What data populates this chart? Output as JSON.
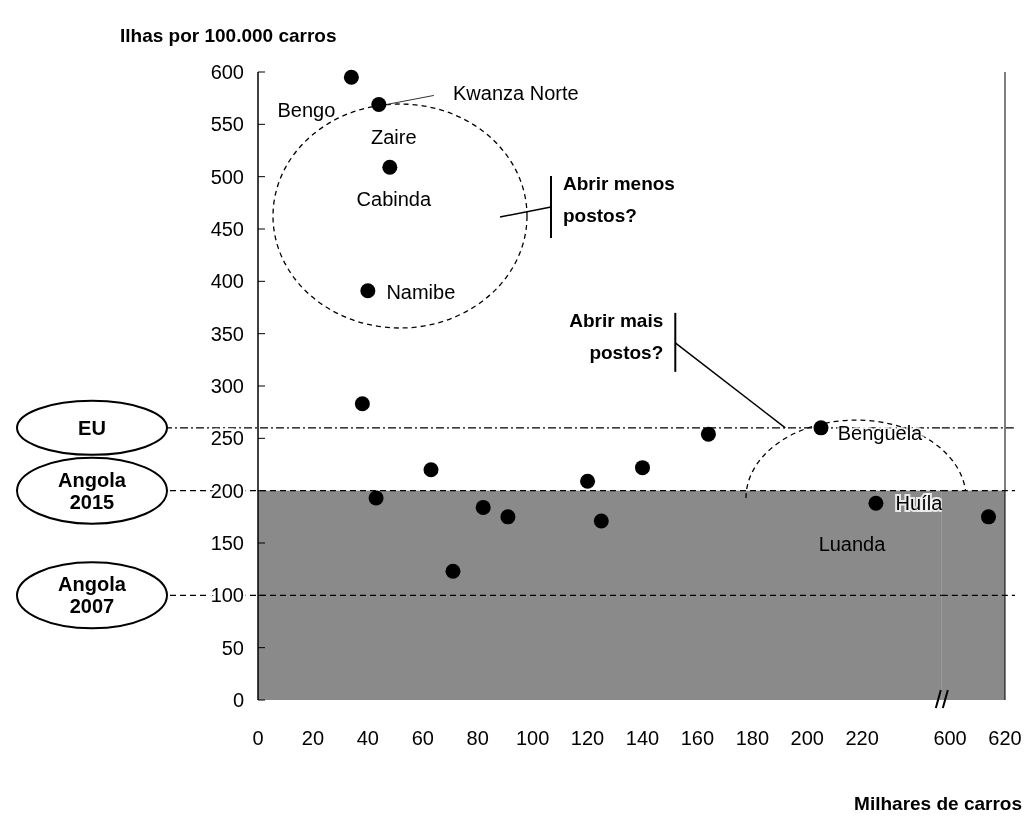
{
  "chart_data": [
    {
      "type": "scatter",
      "xlabel": "Milhares de carros",
      "ylabel": "Ilhas por 100.000 carros",
      "x": [
        34,
        44,
        48,
        40,
        38,
        43,
        63,
        71,
        82,
        91,
        120,
        125,
        140,
        164,
        205,
        225
      ],
      "series": [
        {
          "color": "#000000",
          "values": [
            595,
            569,
            509,
            391,
            283,
            193,
            220,
            123,
            184,
            175,
            209,
            171,
            222,
            254,
            260,
            188
          ]
        }
      ],
      "marker": "circle",
      "xlim": [
        0,
        249
      ],
      "xticks": [
        0,
        20,
        40,
        60,
        80,
        100,
        120,
        140,
        160,
        180,
        200,
        220
      ],
      "ylim": [
        0,
        600
      ],
      "yticks": [
        0,
        50,
        100,
        150,
        200,
        250,
        300,
        350,
        400,
        450,
        500,
        550,
        600
      ],
      "ref_lines": [
        {
          "axis": "y",
          "value": 260,
          "label": "EU"
        },
        {
          "axis": "y",
          "value": 200,
          "label": "Angola 2015",
          "line_style": "dashed"
        },
        {
          "axis": "y",
          "value": 100,
          "label": "Angola 2007",
          "line_style": "dashed"
        }
      ],
      "bands": [
        {
          "axis": "y",
          "from": 0,
          "to": 200,
          "color": "#8a8a8a"
        }
      ],
      "annotations": [
        {
          "text": "Bengo",
          "x": 34,
          "y": 595
        },
        {
          "text": "Kwanza Norte",
          "x": 44,
          "y": 569
        },
        {
          "text": "Zaire",
          "x": 48,
          "y": 509
        },
        {
          "text": "Cabinda",
          "x": 48,
          "y": 509
        },
        {
          "text": "Namibe",
          "x": 40,
          "y": 391
        },
        {
          "text": "Benguela",
          "x": 205,
          "y": 260
        },
        {
          "text": "Huíla",
          "x": 225,
          "y": 188
        },
        "Luanda",
        "Abrir menos postos?",
        {
          "text": "Abrir mais postos?",
          "x": 192,
          "y": 260
        }
      ]
    },
    {
      "type": "scatter",
      "x": [
        614
      ],
      "series": [
        {
          "color": "#000000",
          "values": [
            175
          ]
        }
      ],
      "marker": "circle",
      "xlim": [
        597,
        620
      ],
      "xticks": [
        600,
        620
      ],
      "ylim": [
        0,
        600
      ],
      "tick_labels": "x",
      "ref_lines": [
        {
          "axis": "y",
          "value": 260
        },
        {
          "axis": "y",
          "value": 200,
          "line_style": "dashed"
        },
        {
          "axis": "y",
          "value": 100,
          "line_style": "dashed"
        }
      ],
      "bands": [
        {
          "axis": "y",
          "from": 0,
          "to": 200,
          "color": "#8a8a8a"
        }
      ]
    }
  ]
}
